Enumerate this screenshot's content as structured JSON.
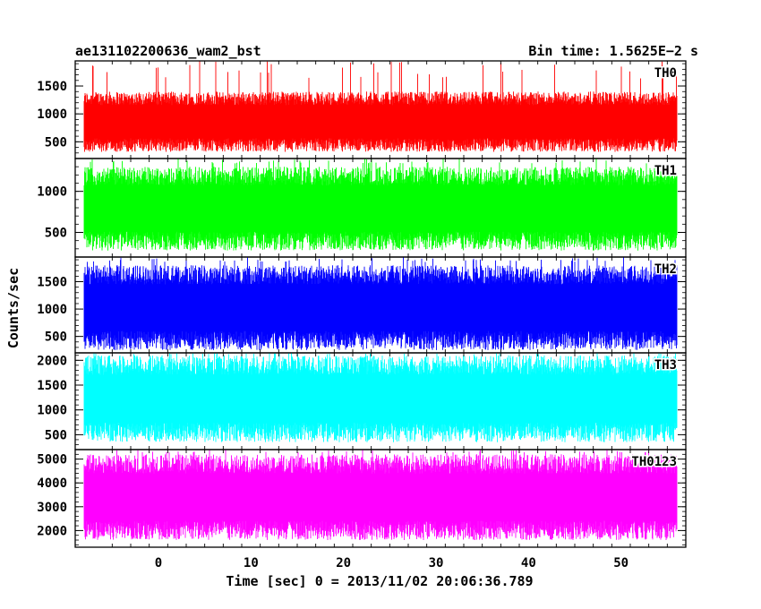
{
  "chart_data": {
    "type": "line",
    "title": "ae131102200636_wam2_bst",
    "bin_time_label": "Bin time: 1.5625E−2 s",
    "xlabel": "Time [sec] 0 = 2013/11/02 20:06:36.789",
    "ylabel": "Counts/sec",
    "xlim": [
      -9,
      57
    ],
    "x_data_range": [
      -8,
      56
    ],
    "x_ticks": [
      0,
      10,
      20,
      30,
      40,
      50
    ],
    "grid": false,
    "legend": "per-panel label, top-right",
    "series": [
      {
        "name": "TH0",
        "color": "#ff0000",
        "ylim": [
          200,
          1950
        ],
        "y_ticks": [
          500,
          1000,
          1500
        ],
        "y_min_typ": 320,
        "y_max_typ": 1400,
        "y_peak": 1950
      },
      {
        "name": "TH1",
        "color": "#00ff00",
        "ylim": [
          200,
          1400
        ],
        "y_ticks": [
          500,
          1000
        ],
        "y_min_typ": 280,
        "y_max_typ": 1300,
        "y_peak": 1400
      },
      {
        "name": "TH2",
        "color": "#0000ff",
        "ylim": [
          200,
          1950
        ],
        "y_ticks": [
          500,
          1000,
          1500
        ],
        "y_min_typ": 250,
        "y_max_typ": 1800,
        "y_peak": 1950
      },
      {
        "name": "TH3",
        "color": "#00ffff",
        "ylim": [
          200,
          2150
        ],
        "y_ticks": [
          500,
          1000,
          1500,
          2000
        ],
        "y_min_typ": 350,
        "y_max_typ": 2100,
        "y_peak": 2150
      },
      {
        "name": "TH0123",
        "color": "#ff00ff",
        "ylim": [
          1300,
          5400
        ],
        "y_ticks": [
          2000,
          3000,
          4000,
          5000
        ],
        "y_min_typ": 1600,
        "y_max_typ": 5200,
        "y_peak": 5400
      }
    ]
  }
}
